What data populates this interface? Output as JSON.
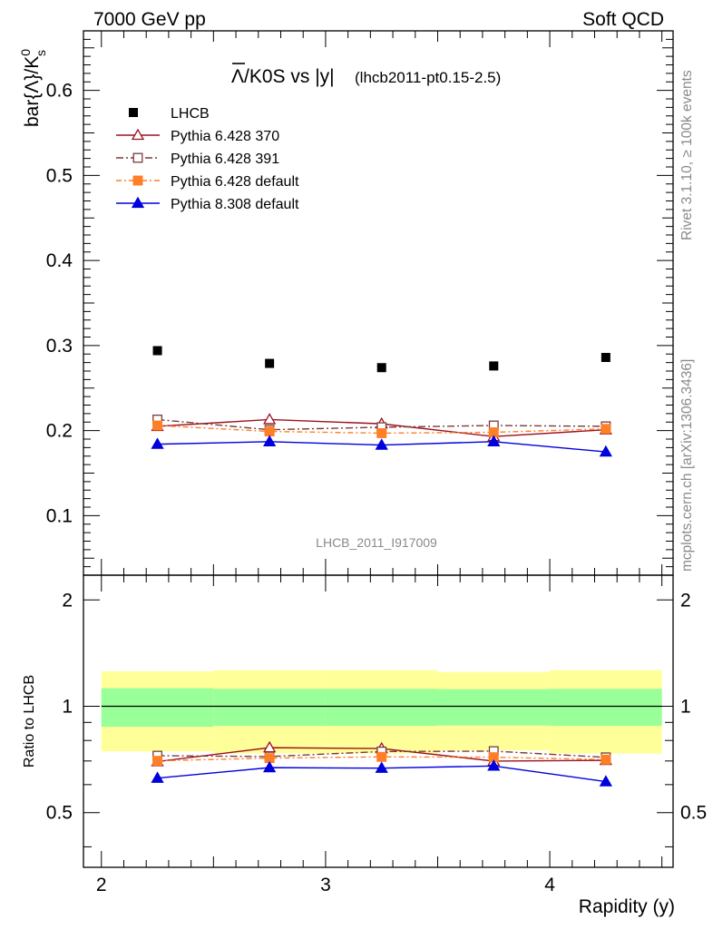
{
  "header": {
    "left": "7000 GeV pp",
    "right": "Soft QCD"
  },
  "side_labels": {
    "rivet": "Rivet 3.1.10, ≥ 100k events",
    "mcplots": "mcplots.cern.ch [arXiv:1306.3436]"
  },
  "chart_data": {
    "type": "scatter",
    "title_main": "Λ/K0S vs |y|",
    "title_lambda": "Λ",
    "title_rest": "/K0S vs |y|",
    "title_sub": "(lhcb2011-pt0.15-2.5)",
    "analysis_label": "LHCB_2011_I917009",
    "xlabel": "Rapidity (y)",
    "ylabel": "bar{Λ}/K",
    "ylabel_sup": "0",
    "ylabel_sub": "s",
    "ratio_ylabel": "Ratio to LHCB",
    "xlim": [
      1.92,
      4.55
    ],
    "ylim": [
      0.03,
      0.67
    ],
    "ratio_ylim": [
      0.35,
      2.35
    ],
    "ratio_log": true,
    "x_ticks": [
      "2",
      "3",
      "4"
    ],
    "y_ticks": [
      "0.1",
      "0.2",
      "0.3",
      "0.4",
      "0.5",
      "0.6"
    ],
    "ratio_ticks": [
      "0.5",
      "1",
      "2"
    ],
    "x": [
      2.25,
      2.75,
      3.25,
      3.75,
      4.25
    ],
    "x_edges": [
      2.0,
      2.5,
      3.0,
      3.5,
      4.0,
      4.5
    ],
    "data": {
      "name": "LHCB",
      "values": [
        0.294,
        0.279,
        0.274,
        0.276,
        0.286
      ]
    },
    "band_inner": [
      0.125,
      0.12,
      0.12,
      0.118,
      0.12
    ],
    "band_outer": [
      0.255,
      0.265,
      0.265,
      0.25,
      0.265
    ],
    "series": [
      {
        "name": "Pythia 6.428 370",
        "color": "#9b111e",
        "marker": "triangle-open",
        "dash": "",
        "values": [
          0.205,
          0.213,
          0.208,
          0.193,
          0.201
        ]
      },
      {
        "name": "Pythia 6.428 391",
        "color": "#7a3b3b",
        "marker": "square-open",
        "dash": "8,3,2,3",
        "values": [
          0.213,
          0.201,
          0.204,
          0.206,
          0.205
        ]
      },
      {
        "name": "Pythia 6.428 default",
        "color": "#ff7f27",
        "marker": "square-filled",
        "dash": "6,3,2,3",
        "values": [
          0.206,
          0.199,
          0.197,
          0.198,
          0.202
        ]
      },
      {
        "name": "Pythia 8.308 default",
        "color": "#0000dd",
        "marker": "triangle-filled",
        "dash": "",
        "values": [
          0.184,
          0.187,
          0.183,
          0.187,
          0.175
        ]
      }
    ]
  }
}
